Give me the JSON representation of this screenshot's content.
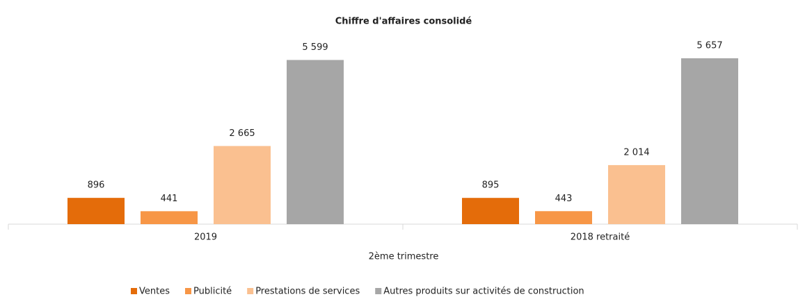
{
  "chart_data": {
    "type": "bar",
    "title": "Chiffre d'affaires consolidé",
    "x_label": "2ème trimestre",
    "categories": [
      "2019",
      "2018 retraité"
    ],
    "series": [
      {
        "name": "Ventes",
        "color": "#e46c0a",
        "values": [
          896,
          895
        ],
        "value_labels": [
          "896",
          "895"
        ]
      },
      {
        "name": "Publicité",
        "color": "#f79646",
        "values": [
          441,
          443
        ],
        "value_labels": [
          "441",
          "443"
        ]
      },
      {
        "name": "Prestations de services",
        "color": "#fac090",
        "values": [
          2665,
          2014
        ],
        "value_labels": [
          "2 665",
          "2 014"
        ]
      },
      {
        "name": "Autres produits sur activités de construction",
        "color": "#a6a6a6",
        "values": [
          5599,
          5657
        ],
        "value_labels": [
          "5 599",
          "5 657"
        ]
      }
    ],
    "legend": "bottom"
  }
}
